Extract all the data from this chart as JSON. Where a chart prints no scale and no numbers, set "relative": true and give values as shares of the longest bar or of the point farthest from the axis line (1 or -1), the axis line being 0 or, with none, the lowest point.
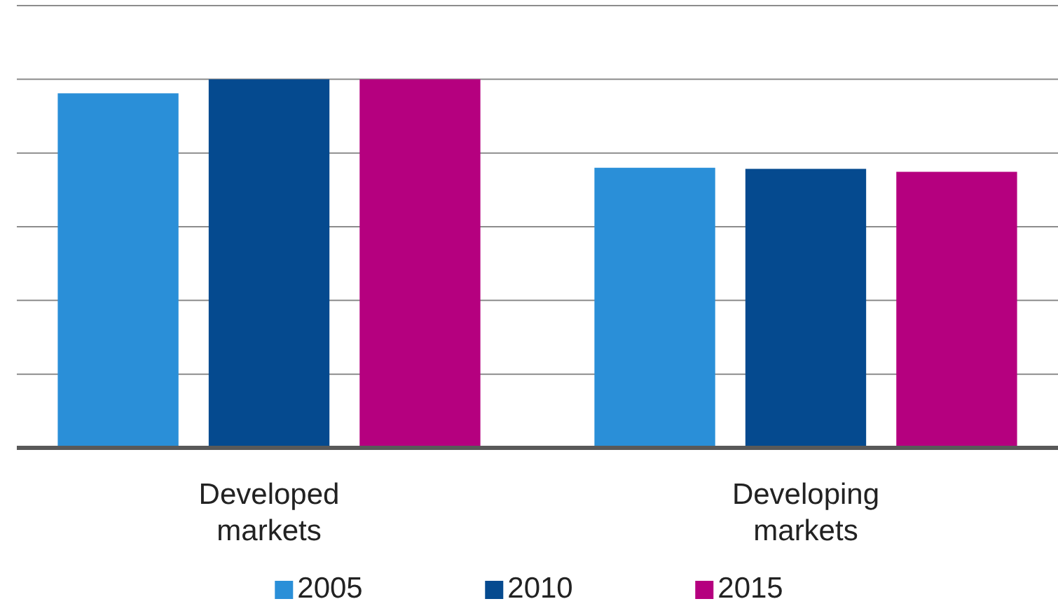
{
  "chart_data": {
    "type": "bar",
    "relative": true,
    "categories": [
      "Developed markets",
      "Developing markets"
    ],
    "series": [
      {
        "name": "2005",
        "color": "#2a8fd8",
        "values": [
          0.962,
          0.76
        ]
      },
      {
        "name": "2010",
        "color": "#054a8f",
        "values": [
          1,
          0.757
        ]
      },
      {
        "name": "2015",
        "color": "#b5007f",
        "values": [
          1,
          0.749
        ]
      }
    ],
    "grid": "y",
    "legend": "bottom"
  }
}
